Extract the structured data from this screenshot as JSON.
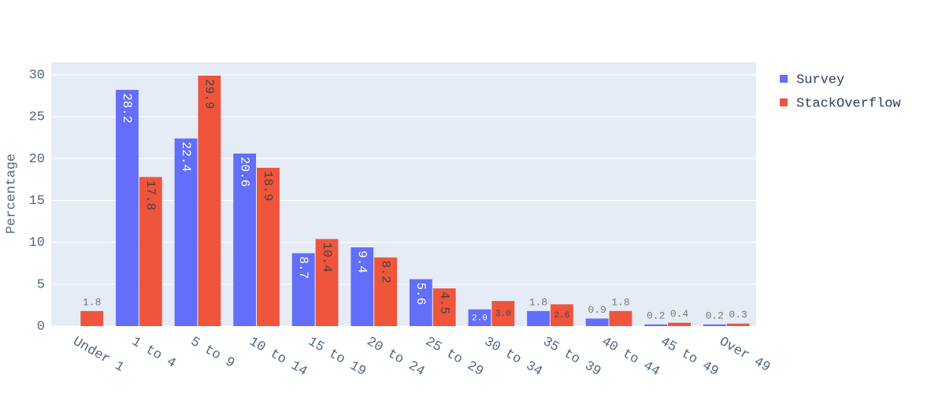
{
  "chart_data": {
    "type": "bar",
    "y_label": "Percentage",
    "categories": [
      "Under 1",
      "1 to 4",
      "5 to 9",
      "10 to 14",
      "15 to 19",
      "20 to 24",
      "25 to 29",
      "30 to 34",
      "35 to 39",
      "40 to 44",
      "45 to 49",
      "Over 49"
    ],
    "series": [
      {
        "name": "Survey",
        "color": "#636efa",
        "values": [
          null,
          28.2,
          22.4,
          20.6,
          8.7,
          9.4,
          5.6,
          2.0,
          1.8,
          0.9,
          0.2,
          0.2
        ],
        "value_labels": [
          null,
          "28.2",
          "22.4",
          "20.6",
          "8.7",
          "9.4",
          "5.6",
          "2.0",
          "1.8",
          "0.9",
          "0.2",
          "0.2"
        ]
      },
      {
        "name": "StackOverflow",
        "color": "#ef553b",
        "values": [
          1.8,
          17.8,
          29.9,
          18.9,
          10.4,
          8.2,
          4.5,
          3.0,
          2.6,
          1.8,
          0.4,
          0.3
        ],
        "value_labels": [
          "1.8",
          "17.8",
          "29.9",
          "18.9",
          "10.4",
          "8.2",
          "4.5",
          "3.0",
          "2.6",
          "1.8",
          "0.4",
          "0.3"
        ]
      }
    ],
    "ylim": [
      0,
      31.5
    ],
    "yticks": [
      0,
      5,
      10,
      15,
      20,
      25,
      30
    ],
    "grid": true,
    "legend": "right"
  }
}
